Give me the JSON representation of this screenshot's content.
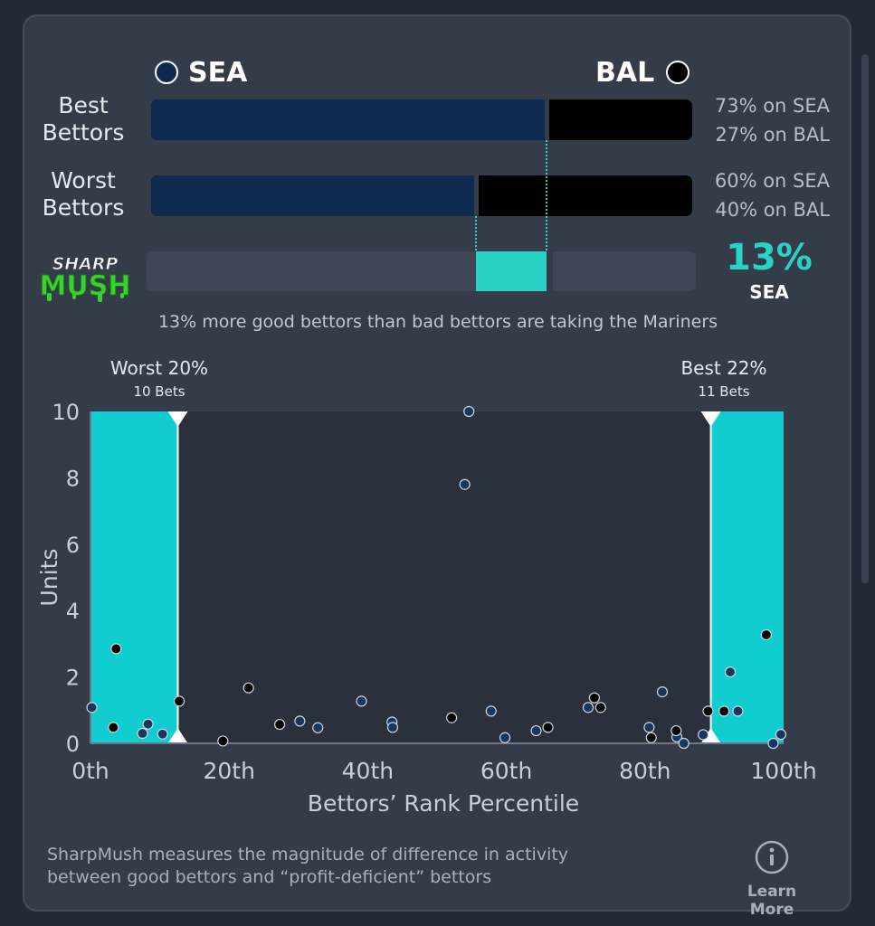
{
  "matchup": {
    "left_team": "SEA",
    "right_team": "BAL",
    "left_color": "#0e2a4f",
    "right_color": "#000000",
    "accent_color": "#2ad2c4"
  },
  "rows": [
    {
      "label_line1": "Best",
      "label_line2": "Bettors",
      "left_share": 73,
      "right_share": 27,
      "left_text": "73% on SEA",
      "right_text": "27% on BAL"
    },
    {
      "label_line1": "Worst",
      "label_line2": "Bettors",
      "left_share": 60,
      "right_share": 40,
      "left_text": "60% on SEA",
      "right_text": "40% on BAL"
    }
  ],
  "logo": {
    "line1": "SHARP",
    "line2": "MUSH"
  },
  "sharpmush": {
    "value": "13%",
    "team": "SEA",
    "from_share": 60,
    "to_share": 73,
    "caption": "13% more good bettors than bad bettors are taking the Mariners"
  },
  "chart_data": {
    "type": "scatter",
    "xlabel": "Bettors’ Rank Percentile",
    "ylabel": "Units",
    "xlim": [
      0,
      100
    ],
    "ylim": [
      0,
      10
    ],
    "x_ticks": [
      0,
      20,
      40,
      60,
      80,
      100
    ],
    "x_tick_labels": [
      "0th",
      "20th",
      "40th",
      "60th",
      "80th",
      "100th"
    ],
    "y_ticks": [
      0,
      2,
      4,
      6,
      8,
      10
    ],
    "y_tick_labels": [
      "0",
      "2",
      "4",
      "6",
      "8",
      "10"
    ],
    "highlight_regions": [
      {
        "from": 0,
        "to": 12.6,
        "label": "Worst 20%",
        "sublabel": "10 Bets"
      },
      {
        "from": 89.5,
        "to": 100,
        "label": "Best 22%",
        "sublabel": "11 Bets"
      }
    ],
    "series": [
      {
        "team": "SEA",
        "color": "#17375f",
        "points": [
          [
            0.2,
            1.08
          ],
          [
            7.5,
            0.3
          ],
          [
            8.3,
            0.58
          ],
          [
            10.4,
            0.28
          ],
          [
            30.2,
            0.67
          ],
          [
            32.8,
            0.47
          ],
          [
            39.1,
            1.27
          ],
          [
            43.5,
            0.64
          ],
          [
            43.6,
            0.48
          ],
          [
            54.0,
            7.8
          ],
          [
            54.6,
            10.0
          ],
          [
            57.8,
            0.97
          ],
          [
            59.8,
            0.17
          ],
          [
            64.3,
            0.38
          ],
          [
            71.8,
            1.08
          ],
          [
            80.6,
            0.48
          ],
          [
            82.5,
            1.55
          ],
          [
            84.6,
            0.19
          ],
          [
            85.6,
            0.0
          ],
          [
            88.4,
            0.26
          ],
          [
            92.3,
            2.15
          ],
          [
            93.4,
            0.97
          ],
          [
            98.5,
            0.0
          ],
          [
            99.6,
            0.27
          ]
        ]
      },
      {
        "team": "BAL",
        "color": "#000000",
        "points": [
          [
            3.3,
            0.48
          ],
          [
            3.7,
            2.85
          ],
          [
            12.8,
            1.27
          ],
          [
            19.1,
            0.07
          ],
          [
            22.8,
            1.67
          ],
          [
            27.3,
            0.57
          ],
          [
            52.1,
            0.77
          ],
          [
            66.0,
            0.48
          ],
          [
            72.7,
            1.37
          ],
          [
            73.6,
            1.08
          ],
          [
            80.9,
            0.17
          ],
          [
            84.5,
            0.38
          ],
          [
            89.1,
            0.97
          ],
          [
            91.4,
            0.97
          ],
          [
            97.5,
            3.27
          ]
        ]
      }
    ]
  },
  "footer": {
    "text_line1": "SharpMush measures the magnitude of difference in activity",
    "text_line2": "between good bettors and “profit-deficient” bettors",
    "info_icon": "info-circle-icon",
    "learn_more": "Learn More"
  }
}
